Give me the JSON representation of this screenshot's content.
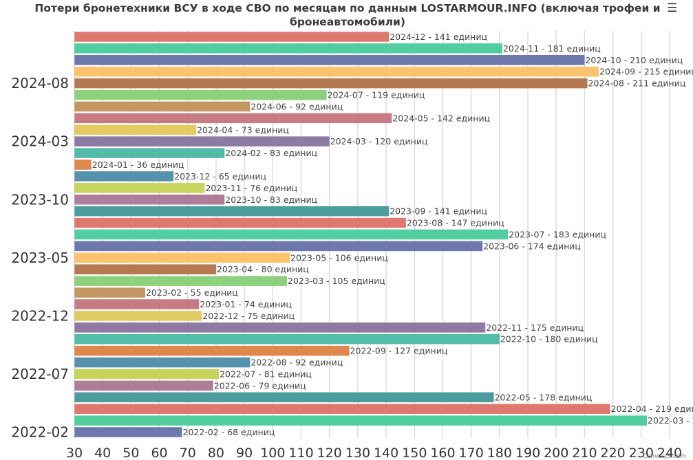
{
  "chart_data": {
    "type": "bar",
    "orientation": "horizontal",
    "title": "Потери бронетехники ВСУ в ходе СВО по месяцам по данным LOSTARMOUR.INFO (включая трофеи и бронеавтомобили)",
    "menu_icon": "☰",
    "credit": "CanvasJS.com",
    "xlim": [
      30,
      240
    ],
    "x_interval": 10,
    "y_tick_labels": [
      "2022-02",
      "2022-07",
      "2022-12",
      "2023-05",
      "2023-10",
      "2024-03",
      "2024-08"
    ],
    "grid": true,
    "categories": [
      "2022-02",
      "2022-03",
      "2022-04",
      "2022-05",
      "2022-06",
      "2022-07",
      "2022-08",
      "2022-09",
      "2022-10",
      "2022-11",
      "2022-12",
      "2023-01",
      "2023-02",
      "2023-03",
      "2023-04",
      "2023-05",
      "2023-06",
      "2023-07",
      "2023-08",
      "2023-09",
      "2023-10",
      "2023-11",
      "2023-12",
      "2024-01",
      "2024-02",
      "2024-03",
      "2024-04",
      "2024-05",
      "2024-06",
      "2024-07",
      "2024-08",
      "2024-09",
      "2024-10",
      "2024-11",
      "2024-12"
    ],
    "values": [
      68,
      232,
      219,
      178,
      79,
      81,
      92,
      127,
      180,
      175,
      75,
      74,
      55,
      105,
      80,
      106,
      174,
      183,
      147,
      141,
      83,
      76,
      65,
      36,
      83,
      120,
      73,
      142,
      92,
      119,
      211,
      215,
      210,
      181,
      141
    ],
    "label_suffix": "единиц",
    "colors": [
      "#6D78AD",
      "#51CDA0",
      "#DF7970",
      "#4C9CA0",
      "#AE7D99",
      "#C9D45C",
      "#5592AD",
      "#DF874D",
      "#52BCA8",
      "#8E7AA3",
      "#E3CB64",
      "#C77B85",
      "#C39762",
      "#8DD17E",
      "#B57952",
      "#FCC26C",
      "#6D78AD",
      "#51CDA0",
      "#DF7970",
      "#4C9CA0",
      "#AE7D99",
      "#C9D45C",
      "#5592AD",
      "#DF874D",
      "#52BCA8",
      "#8E7AA3",
      "#E3CB64",
      "#C77B85",
      "#C39762",
      "#8DD17E",
      "#B57952",
      "#FCC26C",
      "#6D78AD",
      "#51CDA0",
      "#DF7970"
    ]
  }
}
